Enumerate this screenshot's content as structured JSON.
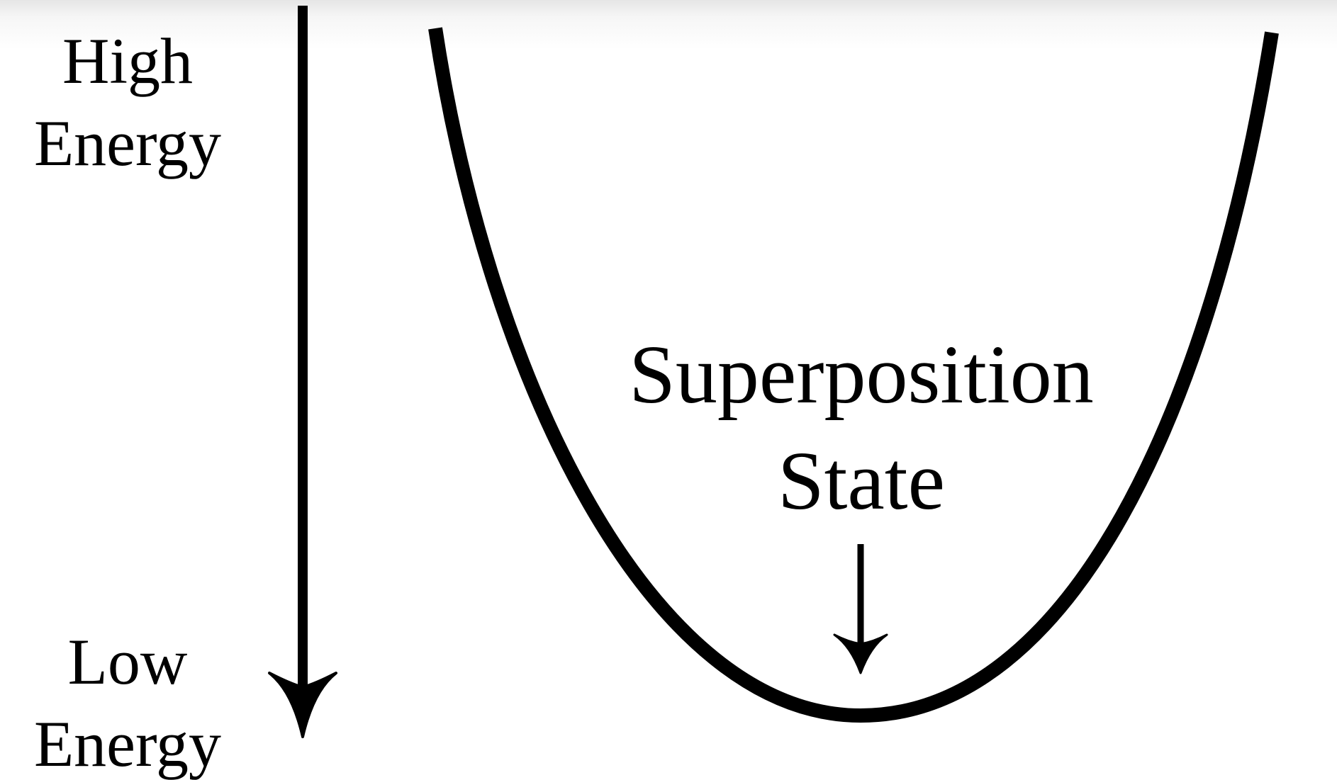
{
  "axis": {
    "top_label": [
      "High",
      "Energy"
    ],
    "bottom_label": [
      "Low",
      "Energy"
    ]
  },
  "annotation": {
    "lines": [
      "Superposition",
      "State"
    ]
  },
  "colors": {
    "ink": "#000000",
    "background": "#ffffff"
  }
}
